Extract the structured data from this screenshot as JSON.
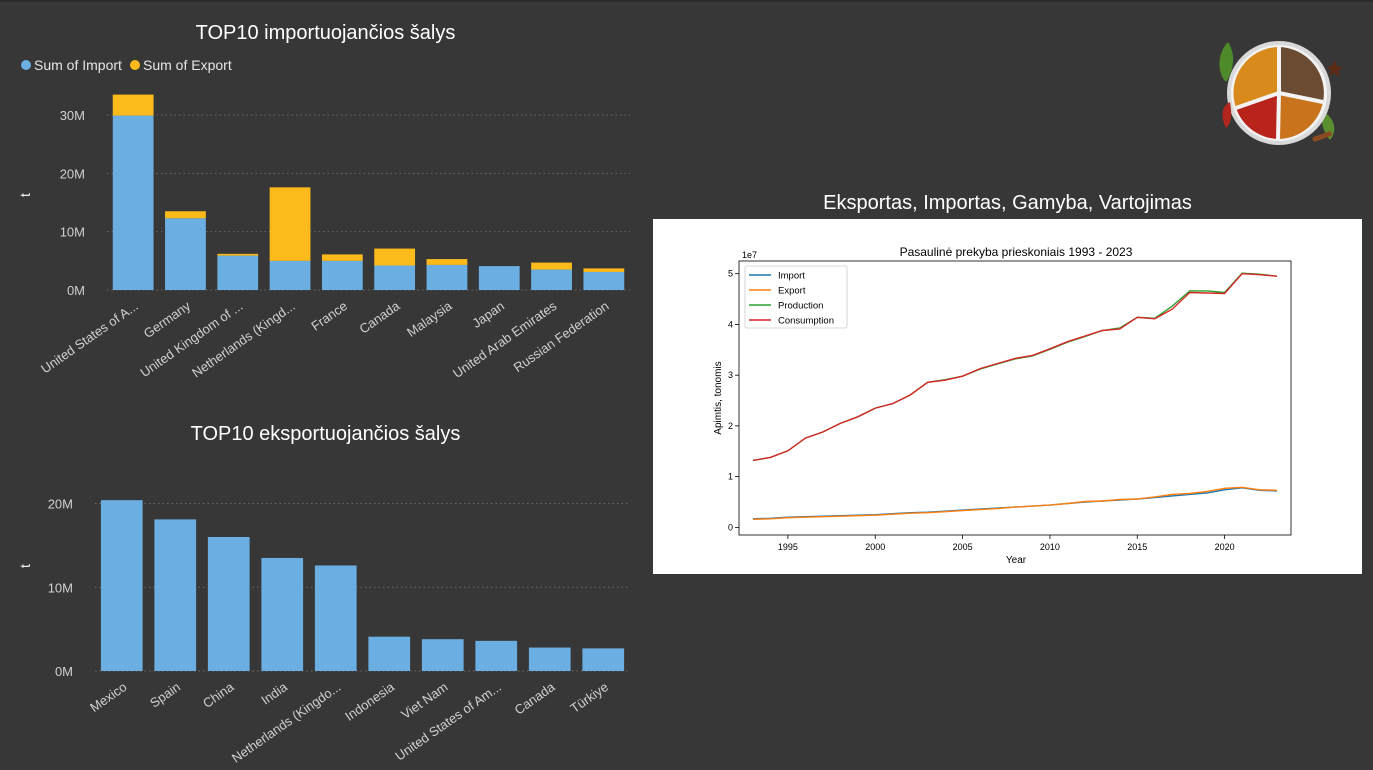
{
  "colors": {
    "background": "#373737",
    "import": "#6aaee2",
    "export": "#fdbb1b",
    "line_import": "#1f77b4",
    "line_export": "#ff7f0e",
    "line_production": "#2ca02c",
    "line_consumption": "#d62728"
  },
  "spice_logo_icon": "spice-bowl-icon",
  "import_panel": {
    "title": "TOP10 importuojančios šalys",
    "legend": [
      "Sum of Import",
      "Sum of Export"
    ],
    "y_axis_title": "t"
  },
  "export_panel": {
    "title": "TOP10 eksportuojančios šalys",
    "y_axis_title": "t"
  },
  "line_panel": {
    "title": "Eksportas, Importas, Gamyba, Vartojimas"
  },
  "chart_data": [
    {
      "type": "bar",
      "stacked": true,
      "title": "TOP10 importuojančios šalys",
      "categories": [
        "United States of A...",
        "Germany",
        "United Kingdom of ...",
        "Netherlands (Kingd...",
        "France",
        "Canada",
        "Malaysia",
        "Japan",
        "United Arab Emirates",
        "Russian Federation"
      ],
      "series": [
        {
          "name": "Sum of Import",
          "values": [
            29.9,
            12.3,
            5.9,
            5.0,
            5.0,
            4.2,
            4.3,
            4.1,
            3.5,
            3.1
          ]
        },
        {
          "name": "Sum of Export",
          "values": [
            3.6,
            1.2,
            0.3,
            12.6,
            1.1,
            2.9,
            1.0,
            0.0,
            1.2,
            0.6
          ]
        }
      ],
      "ylabel": "t",
      "ylim": [
        0,
        36
      ],
      "yticks": [
        0,
        10,
        20,
        30
      ],
      "ytick_labels": [
        "0M",
        "10M",
        "20M",
        "30M"
      ],
      "grid": true,
      "legend": "top-left"
    },
    {
      "type": "bar",
      "title": "TOP10 eksportuojančios šalys",
      "categories": [
        "Mexico",
        "Spain",
        "China",
        "India",
        "Netherlands (Kingdo...",
        "Indonesia",
        "Viet Nam",
        "United States of Am...",
        "Canada",
        "Türkiye"
      ],
      "values": [
        20.4,
        18.1,
        16.0,
        13.5,
        12.6,
        4.1,
        3.8,
        3.6,
        2.8,
        2.7
      ],
      "ylabel": "t",
      "ylim": [
        0,
        24
      ],
      "yticks": [
        0,
        10,
        20
      ],
      "ytick_labels": [
        "0M",
        "10M",
        "20M"
      ],
      "grid": true
    },
    {
      "type": "line",
      "title": "Pasaulinė prekyba prieskoniais 1993 - 2023",
      "xlabel": "Year",
      "ylabel": "Apimtis, tonomis",
      "y_offset_label": "1e7",
      "xlim": [
        1992.2,
        2023.8
      ],
      "ylim": [
        -0.15,
        5.25
      ],
      "xticks": [
        1995,
        2000,
        2005,
        2010,
        2015,
        2020
      ],
      "yticks": [
        0,
        1,
        2,
        3,
        4,
        5
      ],
      "x": [
        1993,
        1994,
        1995,
        1996,
        1997,
        1998,
        1999,
        2000,
        2001,
        2002,
        2003,
        2004,
        2005,
        2006,
        2007,
        2008,
        2009,
        2010,
        2011,
        2012,
        2013,
        2014,
        2015,
        2016,
        2017,
        2018,
        2019,
        2020,
        2021,
        2022,
        2023
      ],
      "series": [
        {
          "name": "Import",
          "values": [
            0.17,
            0.18,
            0.2,
            0.21,
            0.22,
            0.23,
            0.24,
            0.25,
            0.27,
            0.29,
            0.3,
            0.32,
            0.34,
            0.36,
            0.38,
            0.4,
            0.42,
            0.44,
            0.47,
            0.5,
            0.52,
            0.54,
            0.56,
            0.59,
            0.62,
            0.65,
            0.68,
            0.74,
            0.78,
            0.73,
            0.72
          ]
        },
        {
          "name": "Export",
          "values": [
            0.16,
            0.17,
            0.19,
            0.2,
            0.21,
            0.22,
            0.23,
            0.24,
            0.26,
            0.28,
            0.29,
            0.31,
            0.33,
            0.35,
            0.37,
            0.4,
            0.42,
            0.44,
            0.47,
            0.51,
            0.52,
            0.55,
            0.56,
            0.6,
            0.65,
            0.67,
            0.71,
            0.77,
            0.79,
            0.74,
            0.73
          ]
        },
        {
          "name": "Production",
          "values": [
            1.32,
            1.38,
            1.51,
            1.76,
            1.88,
            2.05,
            2.18,
            2.35,
            2.44,
            2.61,
            2.86,
            2.91,
            2.98,
            3.12,
            3.22,
            3.32,
            3.38,
            3.51,
            3.65,
            3.76,
            3.88,
            3.93,
            4.14,
            4.12,
            4.36,
            4.66,
            4.66,
            4.63,
            5.01,
            4.99,
            4.95
          ]
        },
        {
          "name": "Consumption",
          "values": [
            1.32,
            1.38,
            1.51,
            1.76,
            1.88,
            2.05,
            2.18,
            2.35,
            2.44,
            2.61,
            2.86,
            2.9,
            2.98,
            3.13,
            3.23,
            3.33,
            3.39,
            3.52,
            3.66,
            3.77,
            3.88,
            3.91,
            4.14,
            4.11,
            4.3,
            4.63,
            4.62,
            4.61,
            5.0,
            4.98,
            4.95
          ]
        }
      ],
      "legend": "top-left"
    }
  ]
}
